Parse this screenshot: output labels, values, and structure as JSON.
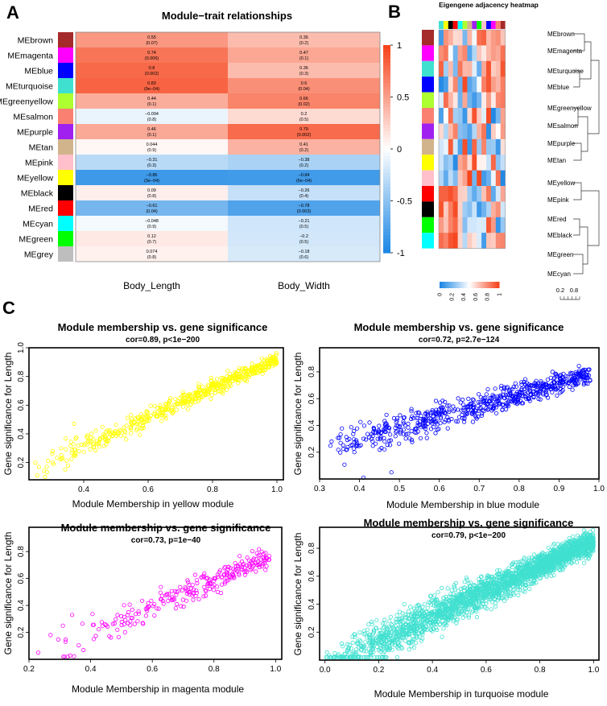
{
  "panels": {
    "a": "A",
    "b": "B",
    "c": "C"
  },
  "colors": {
    "brown": "#a52a2a",
    "magenta": "#ff00ff",
    "blue": "#0000ff",
    "turquoise": "#40e0d0",
    "greenyellow": "#adff2f",
    "salmon": "#fa8072",
    "purple": "#a020f0",
    "tan": "#d2b48c",
    "pink": "#ffc0cb",
    "yellow": "#ffff00",
    "black": "#000000",
    "red": "#ff0000",
    "cyan": "#00ffff",
    "green": "#00ff00",
    "grey": "#bebebe"
  },
  "chart_data": [
    {
      "type": "heatmap",
      "title": "Module−trait relationships",
      "columns": [
        "Body_Length",
        "Body_Width"
      ],
      "legend_ticks": [
        "1",
        "0.5",
        "0",
        "-0.5",
        "-1"
      ],
      "rows": [
        {
          "module": "MEbrown",
          "color": "brown",
          "cells": [
            {
              "cor": 0.55,
              "cor_label": "0.55",
              "p": "(0.07)"
            },
            {
              "cor": 0.36,
              "cor_label": "0.36",
              "p": "(0.2)"
            }
          ]
        },
        {
          "module": "MEmagenta",
          "color": "magenta",
          "cells": [
            {
              "cor": 0.74,
              "cor_label": "0.74",
              "p": "(0.006)"
            },
            {
              "cor": 0.47,
              "cor_label": "0.47",
              "p": "(0.1)"
            }
          ]
        },
        {
          "module": "MEblue",
          "color": "blue",
          "cells": [
            {
              "cor": 0.8,
              "cor_label": "0.8",
              "p": "(0.002)"
            },
            {
              "cor": 0.36,
              "cor_label": "0.36",
              "p": "(0.3)"
            }
          ]
        },
        {
          "module": "MEturquoise",
          "color": "turquoise",
          "cells": [
            {
              "cor": 0.83,
              "cor_label": "0.83",
              "p": "(9e−04)"
            },
            {
              "cor": 0.6,
              "cor_label": "0.6",
              "p": "(0.04)"
            }
          ]
        },
        {
          "module": "MEgreenyellow",
          "color": "greenyellow",
          "cells": [
            {
              "cor": 0.44,
              "cor_label": "0.44",
              "p": "(0.1)"
            },
            {
              "cor": 0.66,
              "cor_label": "0.66",
              "p": "(0.02)"
            }
          ]
        },
        {
          "module": "MEsalmon",
          "color": "salmon",
          "cells": [
            {
              "cor": -0.094,
              "cor_label": "−0.094",
              "p": "(0.8)"
            },
            {
              "cor": 0.2,
              "cor_label": "0.2",
              "p": "(0.5)"
            }
          ]
        },
        {
          "module": "MEpurple",
          "color": "purple",
          "cells": [
            {
              "cor": 0.46,
              "cor_label": "0.46",
              "p": "(0.1)"
            },
            {
              "cor": 0.79,
              "cor_label": "0.79",
              "p": "(0.002)"
            }
          ]
        },
        {
          "module": "MEtan",
          "color": "tan",
          "cells": [
            {
              "cor": 0.044,
              "cor_label": "0.044",
              "p": "(0.9)"
            },
            {
              "cor": 0.41,
              "cor_label": "0.41",
              "p": "(0.2)"
            }
          ]
        },
        {
          "module": "MEpink",
          "color": "pink",
          "cells": [
            {
              "cor": -0.31,
              "cor_label": "−0.31",
              "p": "(0.3)"
            },
            {
              "cor": -0.38,
              "cor_label": "−0.38",
              "p": "(0.2)"
            }
          ]
        },
        {
          "module": "MEyellow",
          "color": "yellow",
          "cells": [
            {
              "cor": -0.86,
              "cor_label": "−0.86",
              "p": "(3e−04)"
            },
            {
              "cor": -0.84,
              "cor_label": "−0.84",
              "p": "(6e−04)"
            }
          ]
        },
        {
          "module": "MEblack",
          "color": "black",
          "cells": [
            {
              "cor": 0.09,
              "cor_label": "0.09",
              "p": "(0.8)"
            },
            {
              "cor": -0.26,
              "cor_label": "−0.26",
              "p": "(0.4)"
            }
          ]
        },
        {
          "module": "MEred",
          "color": "red",
          "cells": [
            {
              "cor": -0.61,
              "cor_label": "−0.61",
              "p": "(0.04)"
            },
            {
              "cor": -0.78,
              "cor_label": "−0.78",
              "p": "(0.003)"
            }
          ]
        },
        {
          "module": "MEcyan",
          "color": "cyan",
          "cells": [
            {
              "cor": -0.048,
              "cor_label": "−0.048",
              "p": "(0.9)"
            },
            {
              "cor": -0.21,
              "cor_label": "−0.21",
              "p": "(0.5)"
            }
          ]
        },
        {
          "module": "MEgreen",
          "color": "green",
          "cells": [
            {
              "cor": 0.12,
              "cor_label": "0.12",
              "p": "(0.7)"
            },
            {
              "cor": -0.2,
              "cor_label": "−0.2",
              "p": "(0.5)"
            }
          ]
        },
        {
          "module": "MEgrey",
          "color": "grey",
          "cells": [
            {
              "cor": 0.074,
              "cor_label": "0.074",
              "p": "(0.8)"
            },
            {
              "cor": -0.18,
              "cor_label": "−0.18",
              "p": "(0.6)"
            }
          ]
        }
      ]
    },
    {
      "type": "heatmap",
      "title": "Eigengene adjacency heatmap",
      "top_colors": [
        "turquoise",
        "yellow",
        "black",
        "red",
        "cyan",
        "greenyellow",
        "tan",
        "purple",
        "green",
        "pink",
        "blue",
        "magenta",
        "salmon",
        "brown"
      ],
      "side_colors": [
        "brown",
        "magenta",
        "turquoise",
        "blue",
        "greenyellow",
        "salmon",
        "purple",
        "tan",
        "yellow",
        "pink",
        "red",
        "black",
        "green",
        "cyan"
      ],
      "dendrogram_labels": [
        "MEbrown",
        "MEmagenta",
        "MEturquoise",
        "MEblue",
        "MEgreenyellow",
        "MEsalmon",
        "MEpurple",
        "MEtan",
        "MEyellow",
        "MEpink",
        "MEred",
        "MEblack",
        "MEgreen",
        "MEcyan"
      ],
      "dendrogram_scale_ticks": [
        "0.2",
        "0.8"
      ],
      "legend_ticks": [
        "0",
        "0.2",
        "0.4",
        "0.6",
        "0.8",
        "1"
      ],
      "range": [
        0,
        1
      ]
    },
    {
      "type": "scatter",
      "title": "Module membership vs. gene significance",
      "subtitle": "cor=0.89, p<1e−200",
      "xlabel": "Module Membership in yellow module",
      "ylabel": "Gene significance for Length",
      "xlim": [
        0.23,
        1.02
      ],
      "ylim": [
        0.08,
        1.0
      ],
      "xticks": [
        "0.4",
        "0.6",
        "0.8",
        "1.0"
      ],
      "xtick_values": [
        0.4,
        0.6,
        0.8,
        1.0
      ],
      "yticks": [
        "0.2",
        "0.4",
        "0.6",
        "0.8",
        "1.0"
      ],
      "ytick_values": [
        0.2,
        0.4,
        0.6,
        0.8,
        1.0
      ],
      "color": "#ffff00",
      "n_points": 520,
      "trend": {
        "x_min": 0.24,
        "x_max": 1.0,
        "slope": 1.0,
        "intercept": -0.08,
        "noise": 0.07,
        "skew": 1.6
      },
      "points": [
        [
          0.25,
          0.2
        ],
        [
          0.28,
          0.1
        ],
        [
          0.33,
          0.3
        ],
        [
          0.37,
          0.47
        ]
      ]
    },
    {
      "type": "scatter",
      "title": "Module membership vs. gene significance",
      "subtitle": "cor=0.72, p=2.7e−124",
      "xlabel": "Module Membership in blue module",
      "ylabel": "Gene significance for Length",
      "xlim": [
        0.3,
        1.0
      ],
      "ylim": [
        0.0,
        0.98
      ],
      "xticks": [
        "0.3",
        "0.4",
        "0.5",
        "0.6",
        "0.7",
        "0.8",
        "0.9",
        "1.0"
      ],
      "xtick_values": [
        0.3,
        0.4,
        0.5,
        0.6,
        0.7,
        0.8,
        0.9,
        1.0
      ],
      "yticks": [
        "0.2",
        "0.4",
        "0.6",
        "0.8"
      ],
      "ytick_values": [
        0.2,
        0.4,
        0.6,
        0.8
      ],
      "color": "#0000ff",
      "n_points": 640,
      "trend": {
        "x_min": 0.32,
        "x_max": 0.98,
        "slope": 0.85,
        "intercept": -0.05,
        "noise": 0.11,
        "skew": 1.5
      },
      "points": [
        [
          0.33,
          0.28
        ],
        [
          0.41,
          0.01
        ],
        [
          0.48,
          0.05
        ],
        [
          0.43,
          0.3
        ]
      ]
    },
    {
      "type": "scatter",
      "title": "Module membership vs. gene significance",
      "subtitle": "cor=0.73, p=1e−40",
      "xlabel": "Module Membership in magenta module",
      "ylabel": "Gene significance for Length",
      "xlim": [
        0.2,
        1.02
      ],
      "ylim": [
        0.0,
        0.98
      ],
      "xticks": [
        "0.2",
        "0.4",
        "0.6",
        "0.8",
        "1.0"
      ],
      "xtick_values": [
        0.2,
        0.4,
        0.6,
        0.8,
        1.0
      ],
      "yticks": [
        "0.2",
        "0.4",
        "0.6",
        "0.8"
      ],
      "ytick_values": [
        0.2,
        0.4,
        0.6,
        0.8
      ],
      "color": "#ff00ff",
      "n_points": 260,
      "trend": {
        "x_min": 0.25,
        "x_max": 0.98,
        "slope": 1.0,
        "intercept": -0.22,
        "noise": 0.12,
        "skew": 1.8
      },
      "points": [
        [
          0.23,
          0.05
        ],
        [
          0.27,
          0.18
        ],
        [
          0.31,
          0.25
        ],
        [
          0.34,
          0.33
        ]
      ]
    },
    {
      "type": "scatter",
      "title": "Module membership vs. gene significance",
      "subtitle": "cor=0.79, p<1e−200",
      "xlabel": "Module Membership in turquoise module",
      "ylabel": "Gene significance for Length",
      "xlim": [
        -0.02,
        1.02
      ],
      "ylim": [
        0.0,
        0.95
      ],
      "xticks": [
        "0.0",
        "0.2",
        "0.4",
        "0.6",
        "0.8",
        "1.0"
      ],
      "xtick_values": [
        0.0,
        0.2,
        0.4,
        0.6,
        0.8,
        1.0
      ],
      "yticks": [
        "0.2",
        "0.4",
        "0.6",
        "0.8"
      ],
      "ytick_values": [
        0.2,
        0.4,
        0.6,
        0.8
      ],
      "color": "#40e0d0",
      "n_points": 2400,
      "trend": {
        "x_min": 0.0,
        "x_max": 1.0,
        "slope": 0.9,
        "intercept": -0.05,
        "noise": 0.13,
        "skew": 1.7
      },
      "points": []
    }
  ]
}
